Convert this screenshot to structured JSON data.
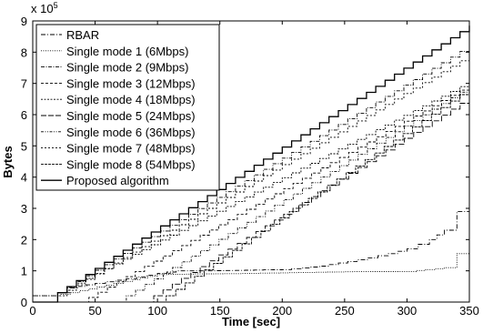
{
  "chart_data": {
    "type": "line",
    "xlabel": "Time [sec]",
    "ylabel": "Bytes",
    "y_multiplier": {
      "base": "x 10",
      "exponent": "5"
    },
    "xlim": [
      0,
      350
    ],
    "ylim": [
      0,
      9
    ],
    "xticks": [
      "0",
      "50",
      "100",
      "150",
      "200",
      "250",
      "300",
      "350"
    ],
    "yticks": [
      "0",
      "1",
      "2",
      "3",
      "4",
      "5",
      "6",
      "7",
      "8",
      "9"
    ],
    "grid": false,
    "legend_position": "top-left",
    "series": [
      {
        "name": "RBAR",
        "dash": "5,2,1,2",
        "width": 0.9,
        "color": "#000000",
        "points": [
          [
            0,
            0.2
          ],
          [
            15,
            0.2
          ],
          [
            20,
            0.3
          ],
          [
            30,
            0.45
          ],
          [
            50,
            0.6
          ],
          [
            75,
            0.75
          ],
          [
            100,
            0.92
          ],
          [
            115,
            1.0
          ],
          [
            140,
            1.0
          ],
          [
            200,
            1.04
          ],
          [
            230,
            1.15
          ],
          [
            260,
            1.35
          ],
          [
            285,
            1.55
          ],
          [
            300,
            1.7
          ],
          [
            318,
            2.0
          ],
          [
            330,
            2.3
          ],
          [
            340,
            2.9
          ],
          [
            350,
            3.05
          ]
        ]
      },
      {
        "name": "Single mode 1 (6Mbps)",
        "dash": "1,1.5",
        "width": 0.9,
        "color": "#000000",
        "points": [
          [
            0,
            0.2
          ],
          [
            15,
            0.2
          ],
          [
            30,
            0.3
          ],
          [
            45,
            0.42
          ],
          [
            65,
            0.6
          ],
          [
            80,
            0.72
          ],
          [
            92,
            0.82
          ],
          [
            100,
            0.88
          ],
          [
            130,
            0.9
          ],
          [
            160,
            0.91
          ],
          [
            220,
            0.95
          ],
          [
            250,
            0.97
          ],
          [
            300,
            0.98
          ],
          [
            330,
            1.1
          ],
          [
            340,
            1.55
          ],
          [
            350,
            1.85
          ]
        ]
      },
      {
        "name": "Single mode 2 (9Mbps)",
        "dash": "4,1.5,1,1.5",
        "width": 0.9,
        "color": "#000000",
        "points": [
          [
            0,
            0.0
          ],
          [
            15,
            0.0
          ],
          [
            20,
            0.3
          ],
          [
            350,
            8.2
          ]
        ]
      },
      {
        "name": "Single mode 3 (12Mbps)",
        "dash": "3,2",
        "width": 0.9,
        "color": "#000000",
        "points": [
          [
            0,
            0.0
          ],
          [
            40,
            0.0
          ],
          [
            45,
            0.15
          ],
          [
            350,
            6.95
          ]
        ]
      },
      {
        "name": "Single mode 4 (18Mbps)",
        "dash": "2,1.5",
        "width": 0.9,
        "color": "#000000",
        "points": [
          [
            0,
            0.0
          ],
          [
            15,
            0.0
          ],
          [
            20,
            0.3
          ],
          [
            350,
            7.05
          ]
        ]
      },
      {
        "name": "Single mode 5 (24Mbps)",
        "dash": "6,2",
        "width": 0.9,
        "color": "#000000",
        "points": [
          [
            0,
            0.0
          ],
          [
            90,
            0.0
          ],
          [
            97,
            0.2
          ],
          [
            350,
            6.55
          ]
        ]
      },
      {
        "name": "Single mode 6 (36Mbps)",
        "dash": "3,1.5,1,1.5,1,1.5",
        "width": 0.9,
        "color": "#000000",
        "points": [
          [
            0,
            0.0
          ],
          [
            70,
            0.0
          ],
          [
            75,
            0.2
          ],
          [
            350,
            6.9
          ]
        ]
      },
      {
        "name": "Single mode 7 (48Mbps)",
        "dash": "2,2",
        "width": 0.9,
        "color": "#000000",
        "points": [
          [
            0,
            0.0
          ],
          [
            15,
            0.0
          ],
          [
            20,
            0.2
          ],
          [
            350,
            7.9
          ]
        ]
      },
      {
        "name": "Single mode 8 (54Mbps)",
        "dash": "3,1",
        "width": 0.9,
        "color": "#000000",
        "points": [
          [
            0,
            0.0
          ],
          [
            100,
            0.0
          ],
          [
            107,
            0.2
          ],
          [
            350,
            6.85
          ]
        ]
      },
      {
        "name": "Proposed algorithm",
        "dash": "",
        "width": 1.3,
        "color": "#000000",
        "points": [
          [
            0,
            0.0
          ],
          [
            15,
            0.0
          ],
          [
            20,
            0.3
          ],
          [
            350,
            8.85
          ]
        ]
      }
    ]
  }
}
